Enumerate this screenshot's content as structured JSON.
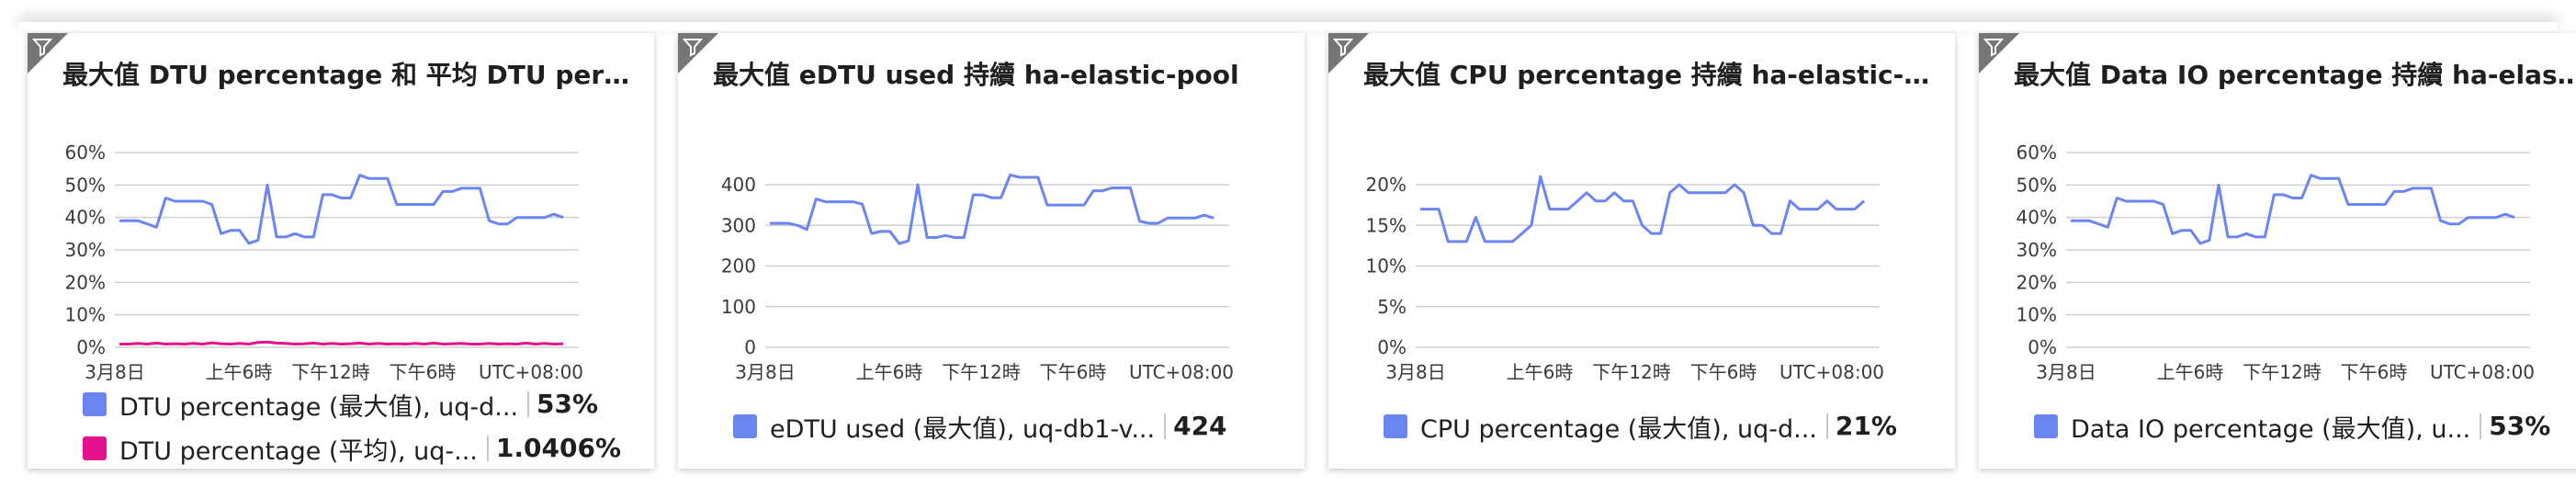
{
  "colors": {
    "blue": "#6b85f2",
    "pink": "#e3138d",
    "grid": "#cfcfcf"
  },
  "tiles": [
    {
      "title": "最大值 DTU percentage 和 平均 DTU percen...",
      "filter_icon": "filter-icon",
      "legend": [
        {
          "label": "DTU percentage (最大值), uq-d...",
          "value": "53%",
          "color": "#6b85f2"
        },
        {
          "label": "DTU percentage (平均), uq-...",
          "value": "1.0406%",
          "color": "#e3138d"
        }
      ],
      "chart_data": {
        "type": "line",
        "ylim": [
          0,
          60
        ],
        "y_ticks": [
          "0%",
          "10%",
          "20%",
          "30%",
          "40%",
          "50%",
          "60%"
        ],
        "x_ticks": [
          "3月8日",
          "上午6時",
          "下午12時",
          "下午6時",
          "UTC+08:00"
        ],
        "series": [
          {
            "values": [
              39,
              39,
              39,
              38,
              37,
              46,
              45,
              45,
              45,
              45,
              44,
              35,
              36,
              36,
              32,
              33,
              50,
              34,
              34,
              35,
              34,
              34,
              47,
              47,
              46,
              46,
              53,
              52,
              52,
              52,
              44,
              44,
              44,
              44,
              44,
              48,
              48,
              49,
              49,
              49,
              39,
              38,
              38,
              40,
              40,
              40,
              40,
              41,
              40
            ],
            "color": "#6b85f2"
          },
          {
            "values": [
              1,
              1,
              1.2,
              1,
              1.3,
              1,
              1.1,
              1,
              1.2,
              1,
              1.4,
              1.1,
              1,
              1.2,
              1,
              1.5,
              1.6,
              1.3,
              1.2,
              1,
              1.1,
              1.3,
              1,
              1.2,
              1,
              1.1,
              1.3,
              1,
              1.2,
              1,
              1.1,
              1,
              1.2,
              1,
              1.3,
              1,
              1.1,
              1.2,
              1,
              1,
              1.2,
              1,
              1.1,
              1,
              1.3,
              1,
              1.2,
              1,
              1.1
            ],
            "color": "#e3138d"
          }
        ]
      }
    },
    {
      "title": "最大值 eDTU used 持續 ha-elastic-pool",
      "filter_icon": "filter-icon",
      "legend": [
        {
          "label": "eDTU used (最大值), uq-db1-v...",
          "value": "424",
          "color": "#6b85f2"
        }
      ],
      "chart_data": {
        "type": "line",
        "ylim": [
          0,
          400
        ],
        "y_ticks": [
          "0",
          "100",
          "200",
          "300",
          "400"
        ],
        "x_ticks": [
          "3月8日",
          "上午6時",
          "下午12時",
          "下午6時",
          "UTC+08:00"
        ],
        "series": [
          {
            "values": [
              305,
              305,
              305,
              300,
              290,
              365,
              358,
              358,
              358,
              358,
              352,
              280,
              285,
              285,
              255,
              262,
              400,
              270,
              270,
              275,
              270,
              270,
              375,
              375,
              368,
              368,
              424,
              418,
              418,
              418,
              350,
              350,
              350,
              350,
              350,
              385,
              385,
              392,
              392,
              392,
              310,
              305,
              305,
              318,
              318,
              318,
              318,
              325,
              318
            ],
            "color": "#6b85f2"
          }
        ]
      }
    },
    {
      "title": "最大值 CPU percentage 持續 ha-elastic-pool",
      "filter_icon": "filter-icon",
      "legend": [
        {
          "label": "CPU percentage (最大值), uq-d...",
          "value": "21%",
          "color": "#6b85f2"
        }
      ],
      "chart_data": {
        "type": "line",
        "ylim": [
          0,
          20
        ],
        "y_ticks": [
          "0%",
          "5%",
          "10%",
          "15%",
          "20%"
        ],
        "x_ticks": [
          "3月8日",
          "上午6時",
          "下午12時",
          "下午6時",
          "UTC+08:00"
        ],
        "series": [
          {
            "values": [
              17,
              17,
              17,
              13,
              13,
              13,
              16,
              13,
              13,
              13,
              13,
              14,
              15,
              21,
              17,
              17,
              17,
              18,
              19,
              18,
              18,
              19,
              18,
              18,
              15,
              14,
              14,
              19,
              20,
              19,
              19,
              19,
              19,
              19,
              20,
              19,
              15,
              15,
              14,
              14,
              18,
              17,
              17,
              17,
              18,
              17,
              17,
              17,
              18
            ],
            "color": "#6b85f2"
          }
        ]
      }
    },
    {
      "title": "最大值 Data IO percentage 持續 ha-elastic-...",
      "filter_icon": "filter-icon",
      "legend": [
        {
          "label": "Data IO percentage (最大值), u...",
          "value": "53%",
          "color": "#6b85f2"
        }
      ],
      "chart_data": {
        "type": "line",
        "ylim": [
          0,
          60
        ],
        "y_ticks": [
          "0%",
          "10%",
          "20%",
          "30%",
          "40%",
          "50%",
          "60%"
        ],
        "x_ticks": [
          "3月8日",
          "上午6時",
          "下午12時",
          "下午6時",
          "UTC+08:00"
        ],
        "series": [
          {
            "values": [
              39,
              39,
              39,
              38,
              37,
              46,
              45,
              45,
              45,
              45,
              44,
              35,
              36,
              36,
              32,
              33,
              50,
              34,
              34,
              35,
              34,
              34,
              47,
              47,
              46,
              46,
              53,
              52,
              52,
              52,
              44,
              44,
              44,
              44,
              44,
              48,
              48,
              49,
              49,
              49,
              39,
              38,
              38,
              40,
              40,
              40,
              40,
              41,
              40
            ],
            "color": "#6b85f2"
          }
        ]
      }
    }
  ]
}
